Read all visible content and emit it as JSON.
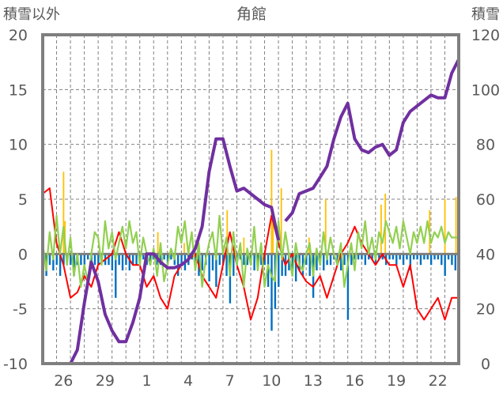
{
  "chart_data": {
    "type": "line",
    "title": "角館",
    "ylabel_left": "積雪以外",
    "ylabel_right": "積雪",
    "xlim": [
      0,
      30
    ],
    "ylim_left": [
      -10,
      20
    ],
    "ylim_right": [
      0,
      120
    ],
    "left_ticks": [
      "-10",
      "-5",
      "0",
      "5",
      "10",
      "15",
      "20"
    ],
    "right_ticks": [
      "0",
      "20",
      "40",
      "60",
      "80",
      "100",
      "120"
    ],
    "x_ticks": [
      {
        "t": 1.5,
        "label": "26"
      },
      {
        "t": 4.5,
        "label": "29"
      },
      {
        "t": 7.5,
        "label": "1"
      },
      {
        "t": 10.5,
        "label": "4"
      },
      {
        "t": 13.5,
        "label": "7"
      },
      {
        "t": 16.5,
        "label": "10"
      },
      {
        "t": 19.5,
        "label": "13"
      },
      {
        "t": 22.5,
        "label": "16"
      },
      {
        "t": 25.5,
        "label": "19"
      },
      {
        "t": 28.5,
        "label": "22"
      }
    ],
    "grid": true,
    "colors": {
      "red": "#ff0000",
      "green": "#92d050",
      "purple": "#7030a0",
      "blue": "#0070c0",
      "orange": "#ffc000",
      "frame": "#7f7f7f"
    },
    "series": [
      {
        "name": "red",
        "axis": "left",
        "values": [
          5.5,
          6,
          1,
          -1,
          -4,
          -3.5,
          -2,
          -3,
          -1,
          -0.5,
          0,
          2,
          0,
          -1,
          -1,
          -3,
          -2,
          -4,
          -5,
          -2,
          -1,
          -0.5,
          0,
          -2,
          -3,
          -4,
          -1,
          2,
          -1,
          -3,
          -6,
          -4,
          0,
          3.5,
          1,
          -1,
          0,
          -1.5,
          -2.5,
          -3,
          -2,
          -4,
          -2,
          0,
          1,
          2.5,
          1,
          0,
          -1,
          0,
          -1,
          -1,
          -3,
          -1,
          -5,
          -6,
          -5,
          -4,
          -6,
          -4,
          -4
        ]
      },
      {
        "name": "green",
        "axis": "left",
        "values": [
          1,
          -1.5,
          2,
          -0.5,
          3.5,
          0,
          2.5,
          -1,
          1.5,
          -2,
          0,
          -3,
          -1,
          -2.5,
          0,
          2,
          1.5,
          -1,
          3,
          0.5,
          2,
          -0.5,
          1,
          2.5,
          0.5,
          3,
          1,
          2,
          -1,
          1.5,
          0,
          -1,
          0.5,
          -2,
          1,
          -2.5,
          -1,
          0.5,
          -0.5,
          2.5,
          1,
          3,
          0,
          2,
          -1.5,
          1,
          -3,
          -0.5,
          1,
          2,
          -0.5,
          3.5,
          0,
          1.5,
          -2,
          2,
          -1,
          1,
          -3,
          0.5,
          -1,
          2.5,
          -1.5,
          1,
          -3,
          -1,
          -2,
          -2.5,
          3,
          -0.5,
          2,
          0,
          -2,
          1,
          -1,
          -1.5,
          0,
          1,
          -2,
          0.5,
          -1,
          2,
          -0.5,
          1.5,
          0,
          -1,
          1,
          -3,
          -1,
          1,
          -1.5,
          2,
          0.5,
          3,
          0,
          1.5,
          -0.5,
          2,
          1,
          3,
          2,
          1,
          2.5,
          0.5,
          3,
          1.5,
          0,
          2,
          1,
          2.5,
          1,
          3,
          1,
          2,
          1.5,
          2.5,
          1,
          2,
          1.5,
          1.5,
          1.5
        ]
      },
      {
        "name": "purple",
        "axis": "right",
        "segments": [
          {
            "start": 0,
            "step": 0.5,
            "values": [
              0,
              0,
              0,
              0,
              0,
              5,
              22,
              37,
              30,
              18,
              12,
              8,
              8,
              15,
              24,
              40,
              40,
              37,
              35,
              35,
              36,
              38,
              42,
              50,
              70,
              82,
              82,
              72,
              63,
              64,
              62,
              60,
              58,
              57,
              45
            ]
          },
          {
            "start": 17.5,
            "step": 0.5,
            "values": [
              52,
              55,
              62,
              63,
              64,
              68,
              72,
              82,
              90,
              95,
              82,
              78,
              77,
              79,
              80,
              76,
              78,
              88,
              92,
              94,
              96,
              98,
              97,
              97,
              106,
              111
            ]
          }
        ]
      },
      {
        "name": "blue",
        "axis": "left",
        "type": "bar",
        "step": 0.25,
        "values": [
          -1,
          -2,
          -1,
          -1.5,
          -1,
          -2,
          -1,
          -0.5,
          -1,
          -2,
          -1,
          -1,
          -1,
          -0.5,
          -1,
          -1,
          -1,
          -0.5,
          -1,
          -1,
          -1.5,
          -4,
          -1,
          -1.5,
          -1,
          -1.5,
          -1,
          -1,
          -1,
          -0.5,
          -1,
          -1,
          -0.5,
          -1,
          -1,
          -0.5,
          -1,
          -0.5,
          -1,
          -2,
          -1,
          -1.5,
          -1,
          -0.5,
          -1,
          -2,
          -1.5,
          -1,
          -2.5,
          -1.5,
          -3,
          -1,
          -1,
          -2,
          -4.5,
          -2,
          -1,
          -0.5,
          -1,
          -1,
          -1,
          -1.5,
          -1,
          -1,
          -1,
          -3,
          -7,
          -5,
          -3,
          -2,
          -2,
          -1.5,
          -2,
          -2.5,
          -1.5,
          -2,
          -1,
          -2,
          -4,
          -1.5,
          -1,
          -1.5,
          -1,
          -1,
          -0.5,
          -1,
          -1.5,
          -1,
          -6,
          -1,
          -0.5,
          -0.5,
          -0.5,
          -1,
          -0.5,
          -0.5,
          -1,
          -0.5,
          -0.5,
          -1,
          -0.5,
          -0.5,
          -1,
          -0.5,
          -1,
          -0.5,
          -1.5,
          -0.5,
          -0.5,
          -1,
          -0.5,
          -0.5,
          -1,
          -0.5,
          -0.5,
          -1,
          -2,
          -0.5,
          -1,
          -1.5,
          -1
        ]
      },
      {
        "name": "orange",
        "axis": "left",
        "type": "bar",
        "points": [
          [
            1.5,
            7.5
          ],
          [
            1.6,
            3
          ],
          [
            8.3,
            2
          ],
          [
            10.2,
            1
          ],
          [
            13.3,
            4
          ],
          [
            14.5,
            1.5
          ],
          [
            16.5,
            9.5
          ],
          [
            16.6,
            4
          ],
          [
            17.2,
            6
          ],
          [
            19.2,
            1.5
          ],
          [
            20.4,
            5
          ],
          [
            24.4,
            4.5
          ],
          [
            24.7,
            5.5
          ],
          [
            27.9,
            4
          ],
          [
            29.0,
            5
          ],
          [
            29.8,
            5.2
          ]
        ]
      }
    ]
  }
}
